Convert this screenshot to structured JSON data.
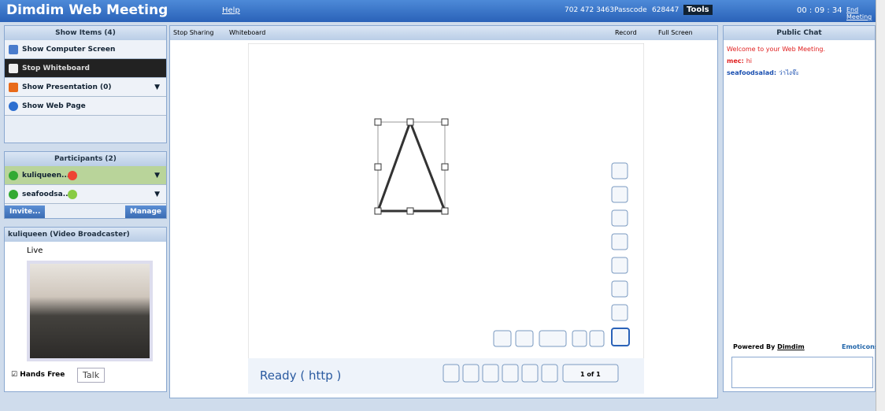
{
  "header": {
    "title": "Dimdim Web Meeting",
    "help": "Help",
    "phone": "702 472 3463",
    "passcode_label": "Passcode",
    "passcode": "628447",
    "tools": "Tools",
    "timer": "00 : 09 : 34",
    "exit": "End Meeting"
  },
  "left": {
    "show_items": "Show Items (4)",
    "items": [
      "Show Computer Screen",
      "Stop Whiteboard",
      "Show Presentation (0)",
      "Show Web Page"
    ],
    "participants_title": "Participants (2)",
    "participants": [
      "kuliqueen...",
      "seafoodsa..."
    ],
    "invite": "Invite...",
    "manage": "Manage",
    "video_title": "kuliqueen (Video Broadcaster)",
    "live": "Live",
    "hands_free": "Hands Free",
    "talk": "Talk"
  },
  "center": {
    "stop_sharing": "Stop Sharing",
    "whiteboard": "Whiteboard",
    "record": "Record",
    "full_screen": "Full Screen",
    "status": "Ready ( http )",
    "page": "1 of 1"
  },
  "chat": {
    "title": "Public Chat",
    "messages": [
      {
        "sender": "Welcome to your Web Meeting.",
        "text": ""
      },
      {
        "sender": "mec:",
        "text": "hi"
      },
      {
        "sender": "seafoodsalad:",
        "text": "ว่าไงจ๊ะ"
      }
    ],
    "powered": "Powered By",
    "brand": "Dimdim",
    "emoticons": "Emoticons"
  }
}
